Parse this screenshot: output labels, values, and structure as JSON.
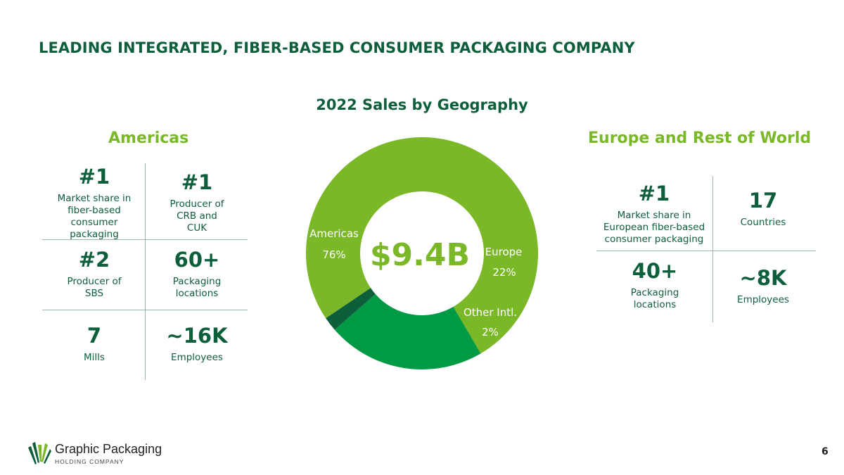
{
  "page_title": "LEADING INTEGRATED, FIBER-BASED CONSUMER PACKAGING COMPANY",
  "americas": {
    "heading": "Americas",
    "stats": [
      {
        "value": "#1",
        "label": "Market share in fiber-based consumer packaging"
      },
      {
        "value": "#1",
        "label": "Producer of CRB and CUK"
      },
      {
        "value": "#2",
        "label": "Producer of SBS"
      },
      {
        "value": "60+",
        "label": "Packaging locations"
      },
      {
        "value": "7",
        "label": "Mills"
      },
      {
        "value": "~16K",
        "label": "Employees"
      }
    ]
  },
  "europe": {
    "heading": "Europe and Rest of World",
    "stats": [
      {
        "value": "#1",
        "label": "Market share in European fiber-based consumer packaging"
      },
      {
        "value": "17",
        "label": "Countries"
      },
      {
        "value": "40+",
        "label": "Packaging locations"
      },
      {
        "value": "~8K",
        "label": "Employees"
      }
    ]
  },
  "chart_data": {
    "type": "pie",
    "title": "2022 Sales by Geography",
    "center_label": "$9.4B",
    "categories": [
      "Americas",
      "Europe",
      "Other Intl."
    ],
    "values": [
      76,
      22,
      2
    ],
    "value_labels": [
      "76%",
      "22%",
      "2%"
    ],
    "colors": [
      "#7ab828",
      "#009a44",
      "#0d5e3a"
    ],
    "start_angle_deg": 146
  },
  "footer": {
    "company": "Graphic Packaging",
    "company_sub": "HOLDING COMPANY",
    "page_number": "6"
  }
}
